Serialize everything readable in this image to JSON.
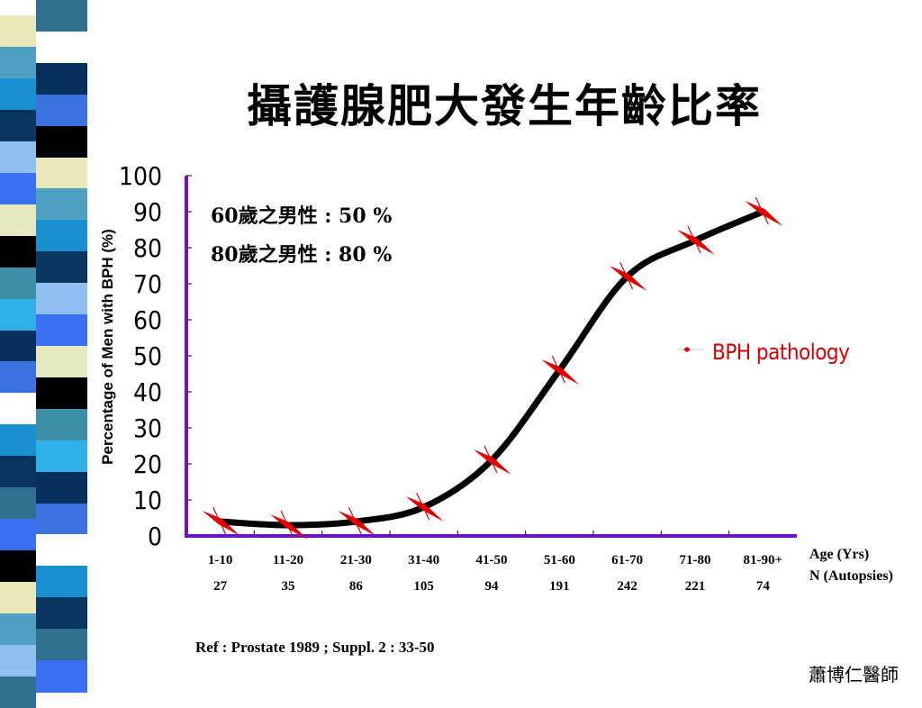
{
  "title": "攝護腺肥大發生年齡比率",
  "annotations": [
    "60歲之男性 : 50 %",
    "80歲之男性 : 80 %"
  ],
  "reference": "Ref : Prostate 1989 ; Suppl. 2 : 33-50",
  "author": "蕭博仁醫師",
  "stripe_colors": [
    "#2f6f8f",
    "#ffffff",
    "#07305c",
    "#3b72e0",
    "#000000",
    "#e8e8b8",
    "#4f9fc0",
    "#1a8fd0",
    "#08345e",
    "#8fc0f0",
    "#3a6ef0",
    "#e8e8c0",
    "#000000",
    "#3e8fa8",
    "#2fb0e8"
  ],
  "chart_data": {
    "type": "line",
    "title": "",
    "ylabel": "Percentage of Men with BPH (%)",
    "xlabel_lines": [
      "Age (Yrs)",
      "N (Autopsies)"
    ],
    "ylim": [
      0,
      100
    ],
    "yticks": [
      "0",
      "10",
      "20",
      "30",
      "40",
      "50",
      "60",
      "70",
      "80",
      "90",
      "100"
    ],
    "categories": [
      "1-10",
      "11-20",
      "21-30",
      "31-40",
      "41-50",
      "51-60",
      "61-70",
      "71-80",
      "81-90+"
    ],
    "n_autopsies": [
      "27",
      "35",
      "86",
      "105",
      "94",
      "191",
      "242",
      "221",
      "74"
    ],
    "series": [
      {
        "name": "BPH pathology",
        "values": [
          4,
          3,
          4,
          8,
          21,
          46,
          72,
          82,
          90
        ],
        "color": "#000000",
        "marker_color": "#e00000"
      }
    ],
    "axis_color": "#6a0fe0",
    "legend": "right",
    "grid": false
  }
}
